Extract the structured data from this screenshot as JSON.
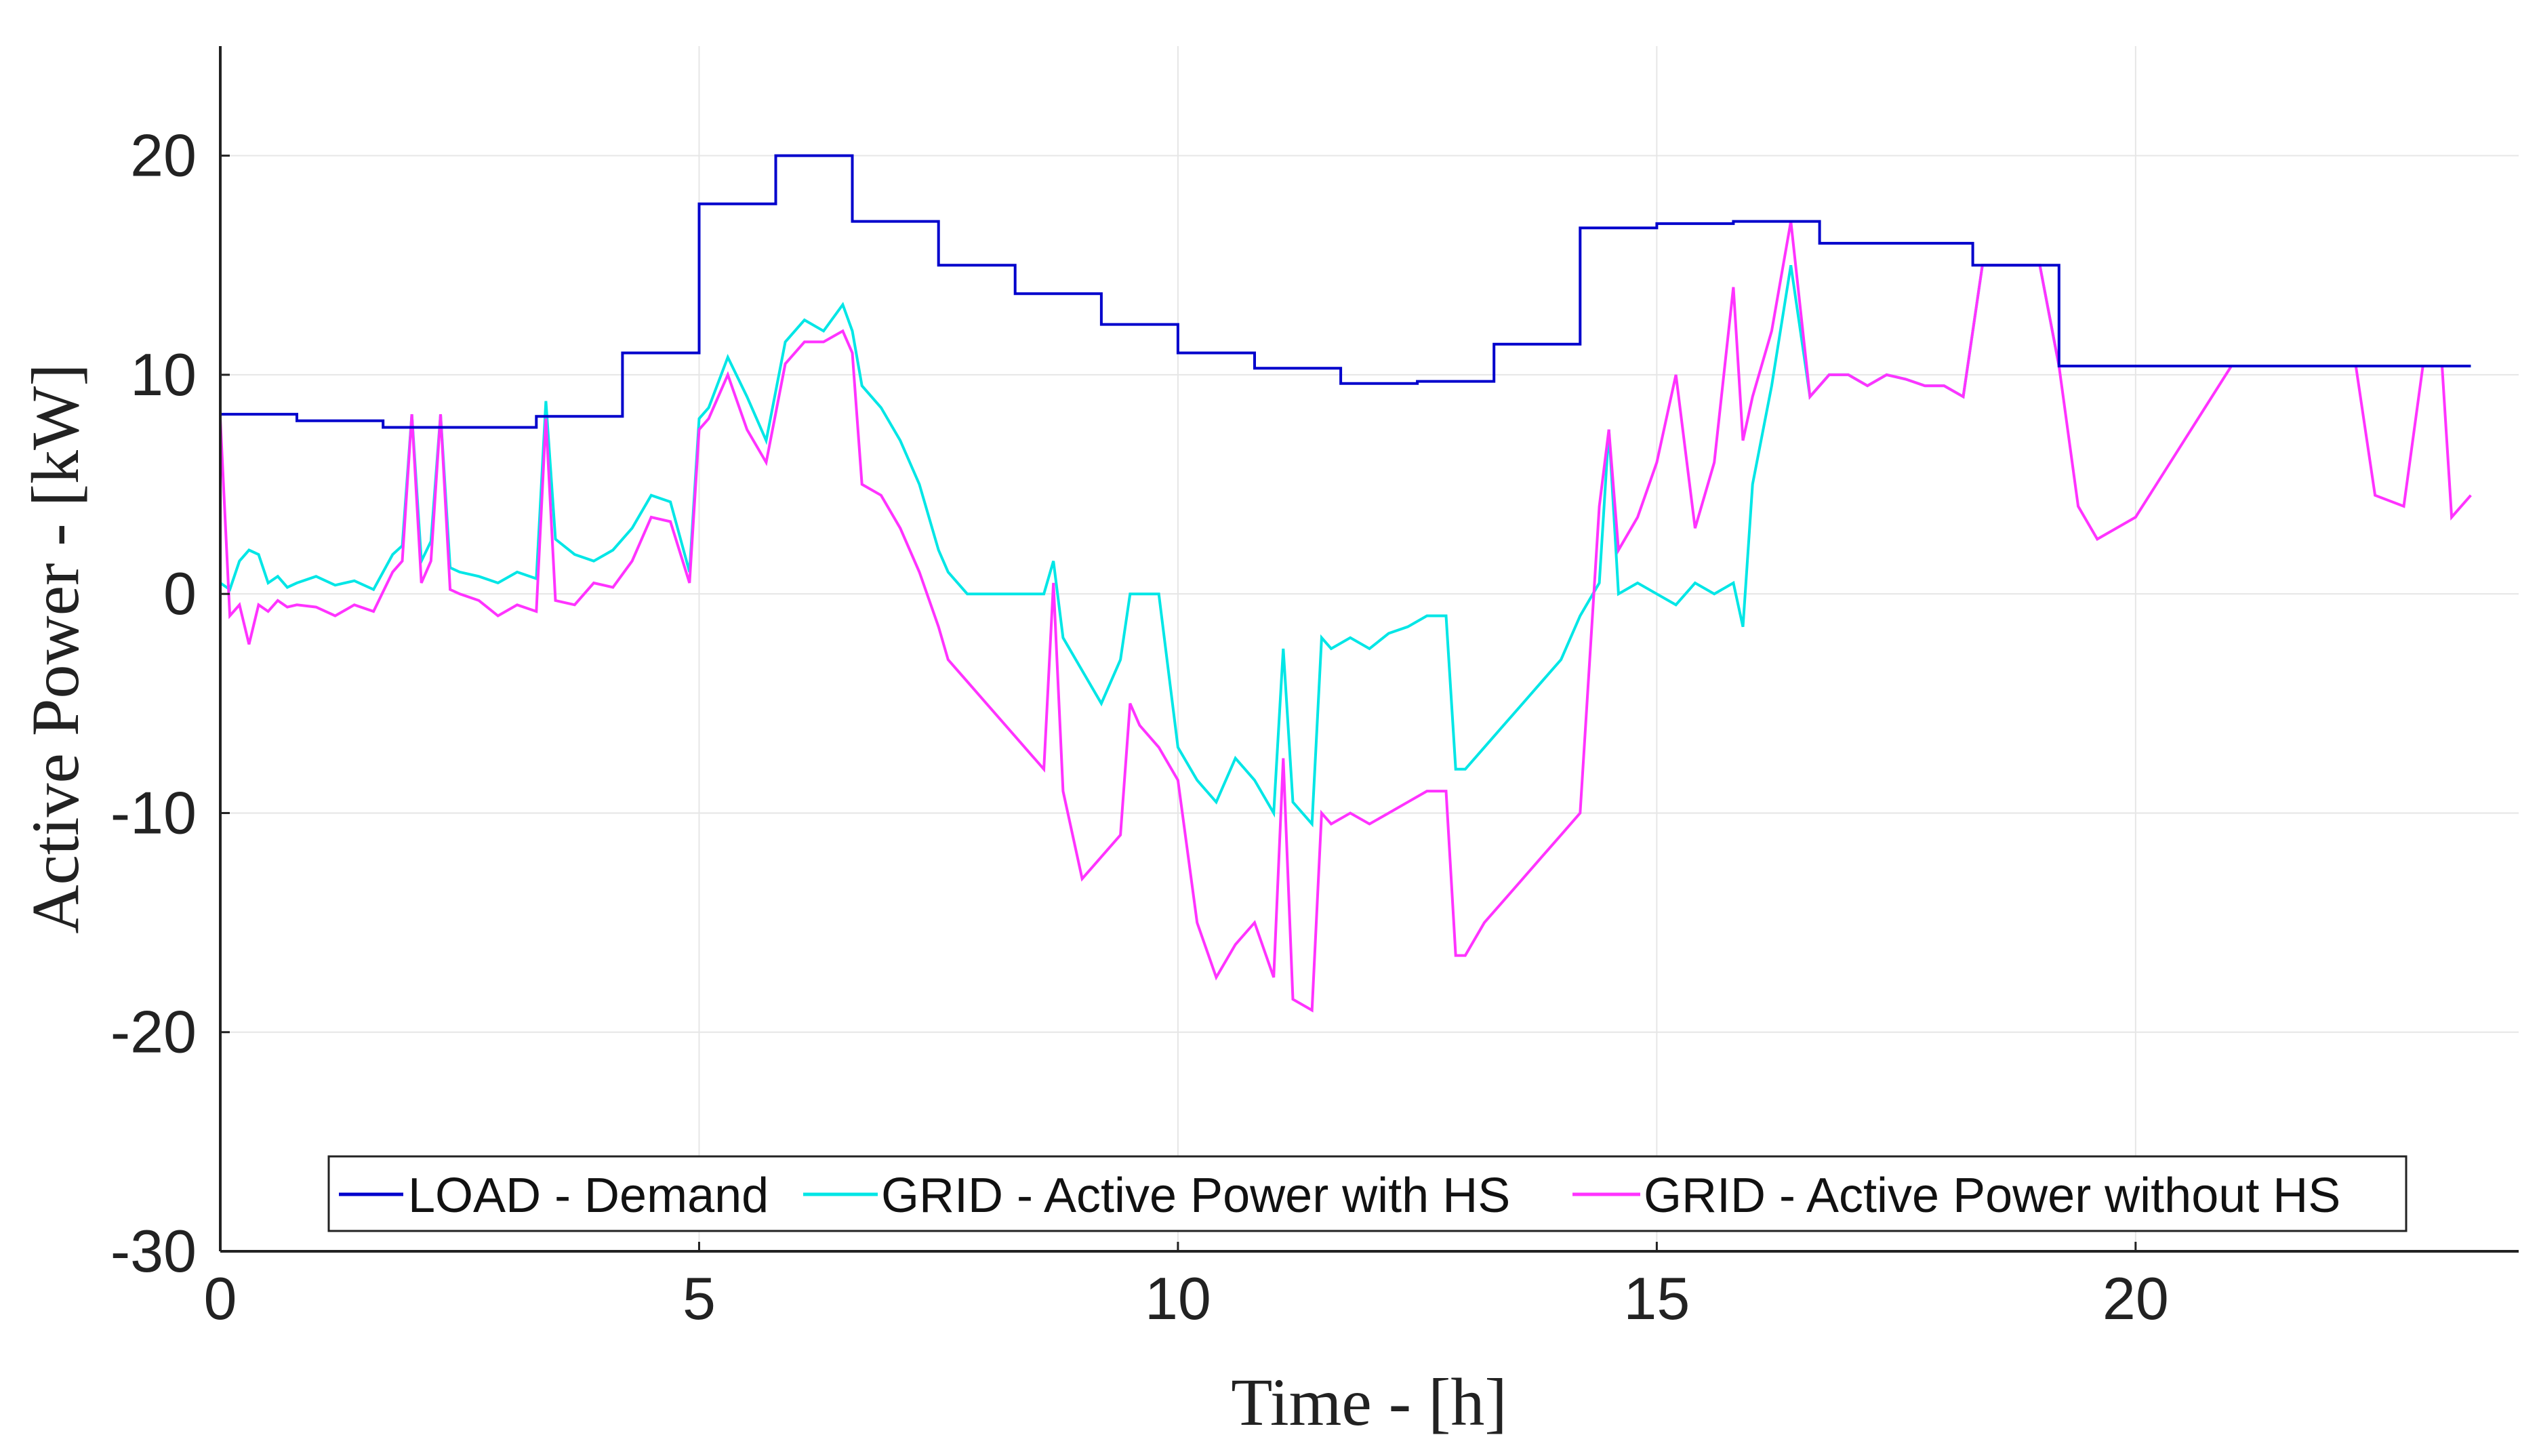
{
  "colors": {
    "load": "#0000cc",
    "grid_with_hs": "#00e6e6",
    "grid_without_hs": "#ff33ff",
    "grid": "#e6e6e6",
    "axis": "#222222"
  },
  "chart_data": {
    "type": "line",
    "title": "",
    "xlabel": "Time - [h]",
    "ylabel": "Active Power - [kW]",
    "xlim": [
      0,
      24
    ],
    "ylim": [
      -30,
      25
    ],
    "xticks": [
      0,
      5,
      10,
      15,
      20
    ],
    "xtick_labels": [
      "0",
      "5",
      "10",
      "15",
      "20"
    ],
    "yticks": [
      -30,
      -20,
      -10,
      0,
      10,
      20
    ],
    "ytick_labels": [
      "-30",
      "-20",
      "-10",
      "0",
      "10",
      "20"
    ],
    "grid": true,
    "legend_position": "bottom-center",
    "series": [
      {
        "name": "LOAD - Demand",
        "color": "#0000cc",
        "x": [
          0,
          0.8,
          0.8,
          1.7,
          1.7,
          3.3,
          3.3,
          4.2,
          4.2,
          5.0,
          5.0,
          5.8,
          5.8,
          6.6,
          6.6,
          7.5,
          7.5,
          8.3,
          8.3,
          9.2,
          9.2,
          10.0,
          10.0,
          10.8,
          10.8,
          11.7,
          11.7,
          12.5,
          12.5,
          13.3,
          13.3,
          14.2,
          14.2,
          15.0,
          15.0,
          15.8,
          15.8,
          16.7,
          16.7,
          17.5,
          17.5,
          18.3,
          18.3,
          19.2,
          19.2,
          23.5
        ],
        "y": [
          8.2,
          8.2,
          7.9,
          7.9,
          7.6,
          7.6,
          8.1,
          8.1,
          11.0,
          11.0,
          17.8,
          17.8,
          20.0,
          20.0,
          17.0,
          17.0,
          15.0,
          15.0,
          13.7,
          13.7,
          12.3,
          12.3,
          11.0,
          11.0,
          10.3,
          10.3,
          9.6,
          9.6,
          9.7,
          9.7,
          11.4,
          11.4,
          16.7,
          16.7,
          16.9,
          16.9,
          17.0,
          17.0,
          16.0,
          16.0,
          16.0,
          16.0,
          15.0,
          15.0,
          10.4,
          10.4
        ]
      },
      {
        "name": "GRID - Active Power with HS",
        "color": "#00e6e6",
        "x": [
          0,
          0.1,
          0.2,
          0.3,
          0.4,
          0.5,
          0.6,
          0.7,
          0.8,
          1.0,
          1.2,
          1.4,
          1.6,
          1.8,
          1.9,
          2.0,
          2.1,
          2.2,
          2.3,
          2.4,
          2.5,
          2.7,
          2.9,
          3.1,
          3.3,
          3.4,
          3.5,
          3.7,
          3.9,
          4.1,
          4.3,
          4.5,
          4.7,
          4.9,
          5.0,
          5.1,
          5.3,
          5.5,
          5.7,
          5.9,
          6.1,
          6.3,
          6.5,
          6.6,
          6.7,
          6.9,
          7.1,
          7.3,
          7.5,
          7.6,
          7.8,
          8.0,
          8.3,
          8.6,
          8.7,
          8.8,
          9.0,
          9.2,
          9.4,
          9.5,
          9.6,
          9.8,
          10.0,
          10.2,
          10.4,
          10.6,
          10.8,
          11.0,
          11.1,
          11.2,
          11.4,
          11.5,
          11.6,
          11.8,
          12.0,
          12.2,
          12.4,
          12.6,
          12.8,
          12.9,
          13.0,
          13.2,
          13.4,
          13.6,
          13.8,
          14.0,
          14.2,
          14.4,
          14.5,
          14.6,
          14.8,
          15.0,
          15.2,
          15.4,
          15.6,
          15.8,
          15.9,
          16.0,
          16.2,
          16.4,
          16.6,
          16.8,
          17.0,
          17.2,
          17.4,
          17.6,
          17.8,
          18.0,
          18.2,
          18.4,
          18.6,
          18.8,
          19.0,
          19.2,
          19.4,
          19.6,
          20.0,
          21.0,
          22.0,
          22.3,
          22.5,
          22.8,
          23.0,
          23.2,
          23.3,
          23.5
        ],
        "y": [
          0.5,
          0.2,
          1.5,
          2.0,
          1.8,
          0.5,
          0.8,
          0.3,
          0.5,
          0.8,
          0.4,
          0.6,
          0.2,
          1.8,
          2.2,
          8.2,
          1.5,
          2.4,
          8.2,
          1.2,
          1.0,
          0.8,
          0.5,
          1.0,
          0.7,
          8.8,
          2.5,
          1.8,
          1.5,
          2.0,
          3.0,
          4.5,
          4.2,
          1.0,
          8.0,
          8.5,
          10.8,
          9.0,
          7.0,
          11.5,
          12.5,
          12.0,
          13.2,
          12.0,
          9.5,
          8.5,
          7.0,
          5.0,
          2.0,
          1.0,
          0.0,
          0.0,
          0.0,
          0.0,
          1.5,
          -2.0,
          -3.5,
          -5.0,
          -3.0,
          0.0,
          0.0,
          0.0,
          -7.0,
          -8.5,
          -9.5,
          -7.5,
          -8.5,
          -10.0,
          -2.5,
          -9.5,
          -10.5,
          -2.0,
          -2.5,
          -2.0,
          -2.5,
          -1.8,
          -1.5,
          -1.0,
          -1.0,
          -8.0,
          -8.0,
          -7.0,
          -6.0,
          -5.0,
          -4.0,
          -3.0,
          -1.0,
          0.5,
          7.5,
          0.0,
          0.5,
          0.0,
          -0.5,
          0.5,
          0.0,
          0.5,
          -1.5,
          5.0,
          9.5,
          15.0,
          9.0,
          10.0,
          10.0,
          9.5,
          10.0,
          9.8,
          9.5,
          9.5,
          9.0,
          15.0,
          15.0,
          15.0,
          15.0,
          10.4,
          10.4,
          10.4,
          10.4,
          10.4,
          10.4,
          10.4,
          10.4,
          10.4,
          10.4,
          10.4,
          10.4,
          10.4
        ]
      },
      {
        "name": "GRID - Active Power without HS",
        "color": "#ff33ff",
        "x": [
          0,
          0.1,
          0.2,
          0.3,
          0.4,
          0.5,
          0.6,
          0.7,
          0.8,
          1.0,
          1.2,
          1.4,
          1.6,
          1.8,
          1.9,
          2.0,
          2.1,
          2.2,
          2.3,
          2.4,
          2.5,
          2.7,
          2.9,
          3.1,
          3.3,
          3.4,
          3.5,
          3.7,
          3.9,
          4.1,
          4.3,
          4.5,
          4.7,
          4.9,
          5.0,
          5.1,
          5.3,
          5.5,
          5.7,
          5.9,
          6.1,
          6.3,
          6.5,
          6.6,
          6.7,
          6.9,
          7.1,
          7.3,
          7.5,
          7.6,
          7.8,
          8.0,
          8.3,
          8.6,
          8.7,
          8.8,
          9.0,
          9.2,
          9.4,
          9.5,
          9.6,
          9.8,
          10.0,
          10.2,
          10.4,
          10.6,
          10.8,
          11.0,
          11.1,
          11.2,
          11.4,
          11.5,
          11.6,
          11.8,
          12.0,
          12.2,
          12.4,
          12.6,
          12.8,
          12.9,
          13.0,
          13.2,
          13.4,
          13.6,
          13.8,
          14.0,
          14.2,
          14.4,
          14.5,
          14.6,
          14.8,
          15.0,
          15.2,
          15.4,
          15.6,
          15.8,
          15.9,
          16.0,
          16.2,
          16.4,
          16.6,
          16.8,
          17.0,
          17.2,
          17.4,
          17.6,
          17.8,
          18.0,
          18.2,
          18.4,
          18.6,
          18.8,
          19.0,
          19.2,
          19.4,
          19.6,
          20.0,
          21.0,
          22.0,
          22.3,
          22.5,
          22.8,
          23.0,
          23.2,
          23.3,
          23.5
        ],
        "y": [
          8.0,
          -1.0,
          -0.5,
          -2.3,
          -0.5,
          -0.8,
          -0.3,
          -0.6,
          -0.5,
          -0.6,
          -1.0,
          -0.5,
          -0.8,
          1.0,
          1.5,
          8.2,
          0.5,
          1.5,
          8.2,
          0.2,
          0.0,
          -0.3,
          -1.0,
          -0.5,
          -0.8,
          8.0,
          -0.3,
          -0.5,
          0.5,
          0.3,
          1.5,
          3.5,
          3.3,
          0.5,
          7.5,
          8.0,
          10.0,
          7.5,
          6.0,
          10.5,
          11.5,
          11.5,
          12.0,
          11.0,
          5.0,
          4.5,
          3.0,
          1.0,
          -1.5,
          -3.0,
          -4.0,
          -5.0,
          -6.5,
          -8.0,
          0.5,
          -9.0,
          -13.0,
          -12.0,
          -11.0,
          -5.0,
          -6.0,
          -7.0,
          -8.5,
          -15.0,
          -17.5,
          -16.0,
          -15.0,
          -17.5,
          -7.5,
          -18.5,
          -19.0,
          -10.0,
          -10.5,
          -10.0,
          -10.5,
          -10.0,
          -9.5,
          -9.0,
          -9.0,
          -16.5,
          -16.5,
          -15.0,
          -14.0,
          -13.0,
          -12.0,
          -11.0,
          -10.0,
          4.0,
          7.5,
          2.0,
          3.5,
          6.0,
          10.0,
          3.0,
          6.0,
          14.0,
          7.0,
          9.0,
          12.0,
          17.0,
          9.0,
          10.0,
          10.0,
          9.5,
          10.0,
          9.8,
          9.5,
          9.5,
          9.0,
          15.0,
          15.0,
          15.0,
          15.0,
          10.4,
          4.0,
          2.5,
          3.5,
          10.4,
          10.4,
          10.4,
          4.5,
          4.0,
          10.4,
          10.4,
          3.5,
          4.5
        ]
      }
    ]
  }
}
